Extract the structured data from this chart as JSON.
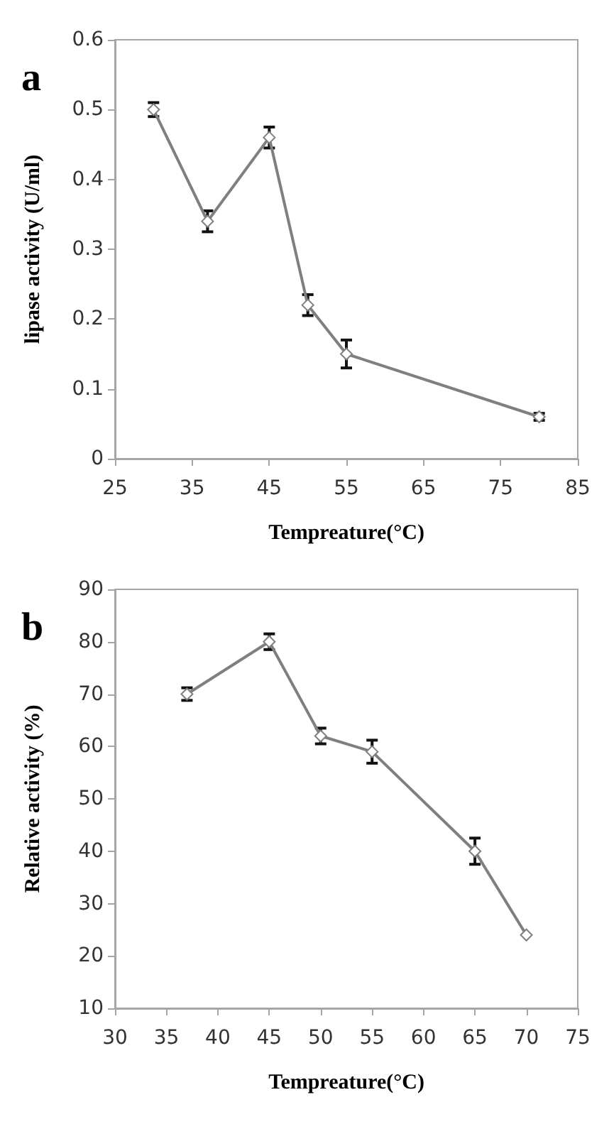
{
  "chart_data": [
    {
      "type": "line",
      "title": "a",
      "xlabel": "Tempreature(°C)",
      "ylabel": "lipase activity (U/ml)",
      "x": [
        30,
        37,
        45,
        50,
        55,
        80
      ],
      "series": [
        {
          "color": "#7f7f7f",
          "values": [
            0.5,
            0.34,
            0.46,
            0.22,
            0.15,
            0.06
          ],
          "errors": [
            0.01,
            0.015,
            0.015,
            0.015,
            0.02,
            0.005
          ]
        }
      ],
      "xlim": [
        25,
        85
      ],
      "xticks": [
        25,
        35,
        45,
        55,
        65,
        75,
        85
      ],
      "ylim": [
        0,
        0.6
      ],
      "yticks": [
        0,
        0.1,
        0.2,
        0.3,
        0.4,
        0.5,
        0.6
      ],
      "grid": false,
      "marker": "diamond",
      "line_style": "solid"
    },
    {
      "type": "line",
      "title": "b",
      "xlabel": "Tempreature(°C)",
      "ylabel": "Relative activity (%)",
      "x": [
        37,
        45,
        50,
        55,
        65,
        70
      ],
      "series": [
        {
          "color": "#7f7f7f",
          "values": [
            70,
            80,
            62,
            59,
            40,
            24
          ],
          "errors": [
            1.2,
            1.5,
            1.5,
            2.2,
            2.5,
            null
          ]
        }
      ],
      "xlim": [
        30,
        75
      ],
      "xticks": [
        30,
        35,
        40,
        45,
        50,
        55,
        60,
        65,
        70,
        75
      ],
      "ylim": [
        10,
        90
      ],
      "yticks": [
        10,
        20,
        30,
        40,
        50,
        60,
        70,
        80,
        90
      ],
      "grid": false,
      "marker": "diamond",
      "line_style": "solid"
    }
  ]
}
